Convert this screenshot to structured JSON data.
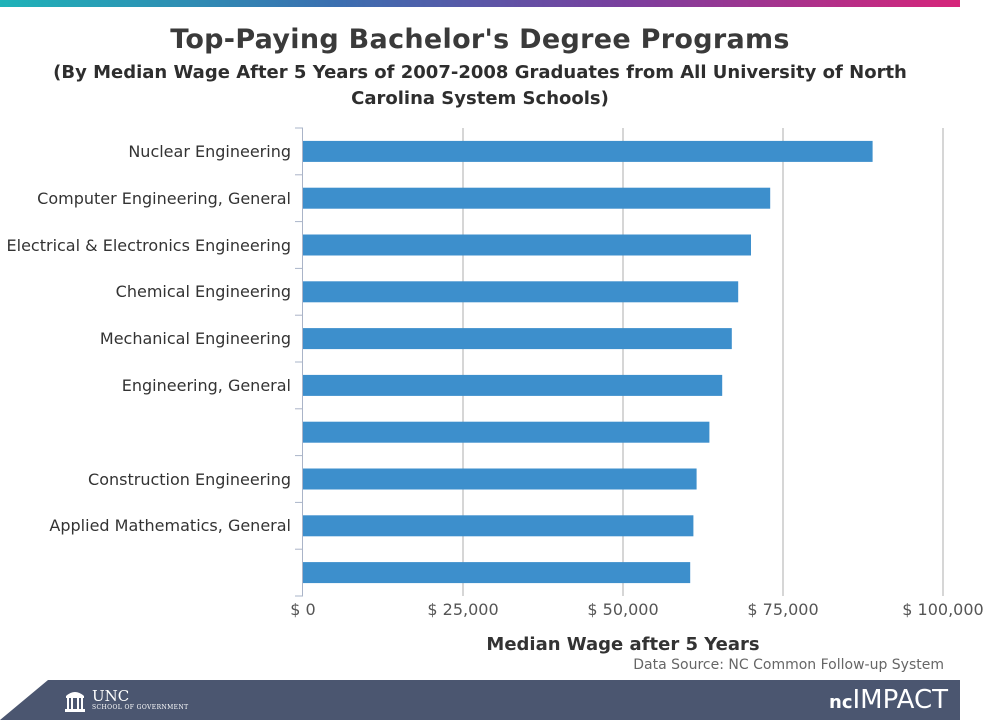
{
  "colors": {
    "bar": "#3d8fcc",
    "grid": "#c8c8c8",
    "axis": "#aab4c8",
    "footer": "#4b5670"
  },
  "footer": {
    "unc_name": "UNC",
    "unc_sub": "SCHOOL OF GOVERNMENT",
    "brand_prefix": "nc",
    "brand_name": "IMPACT",
    "logo_icon": "old-well-icon"
  },
  "chart_data": {
    "type": "bar",
    "orientation": "horizontal",
    "title": "Top-Paying Bachelor's Degree Programs",
    "subtitle": "(By Median Wage After 5 Years of 2007-2008 Graduates from All University of North Carolina System Schools)",
    "categories": [
      "Nuclear Engineering",
      "Computer Engineering, General",
      "Electrical & Electronics Engineering",
      "Chemical Engineering",
      "Mechanical Engineering",
      "Engineering, General",
      "",
      "Construction Engineering",
      "Applied Mathematics, General",
      ""
    ],
    "values": [
      89000,
      73000,
      70000,
      68000,
      67000,
      65500,
      63500,
      61500,
      61000,
      60500
    ],
    "xlabel": "Median Wage after 5 Years",
    "ylabel": "",
    "xlim": [
      0,
      100000
    ],
    "xticks": [
      0,
      25000,
      50000,
      75000,
      100000
    ],
    "xtick_labels": [
      "$ 0",
      "$ 25,000",
      "$ 50,000",
      "$ 75,000",
      "$ 100,000"
    ],
    "grid": true,
    "source": "Data Source: NC Common Follow-up System"
  }
}
